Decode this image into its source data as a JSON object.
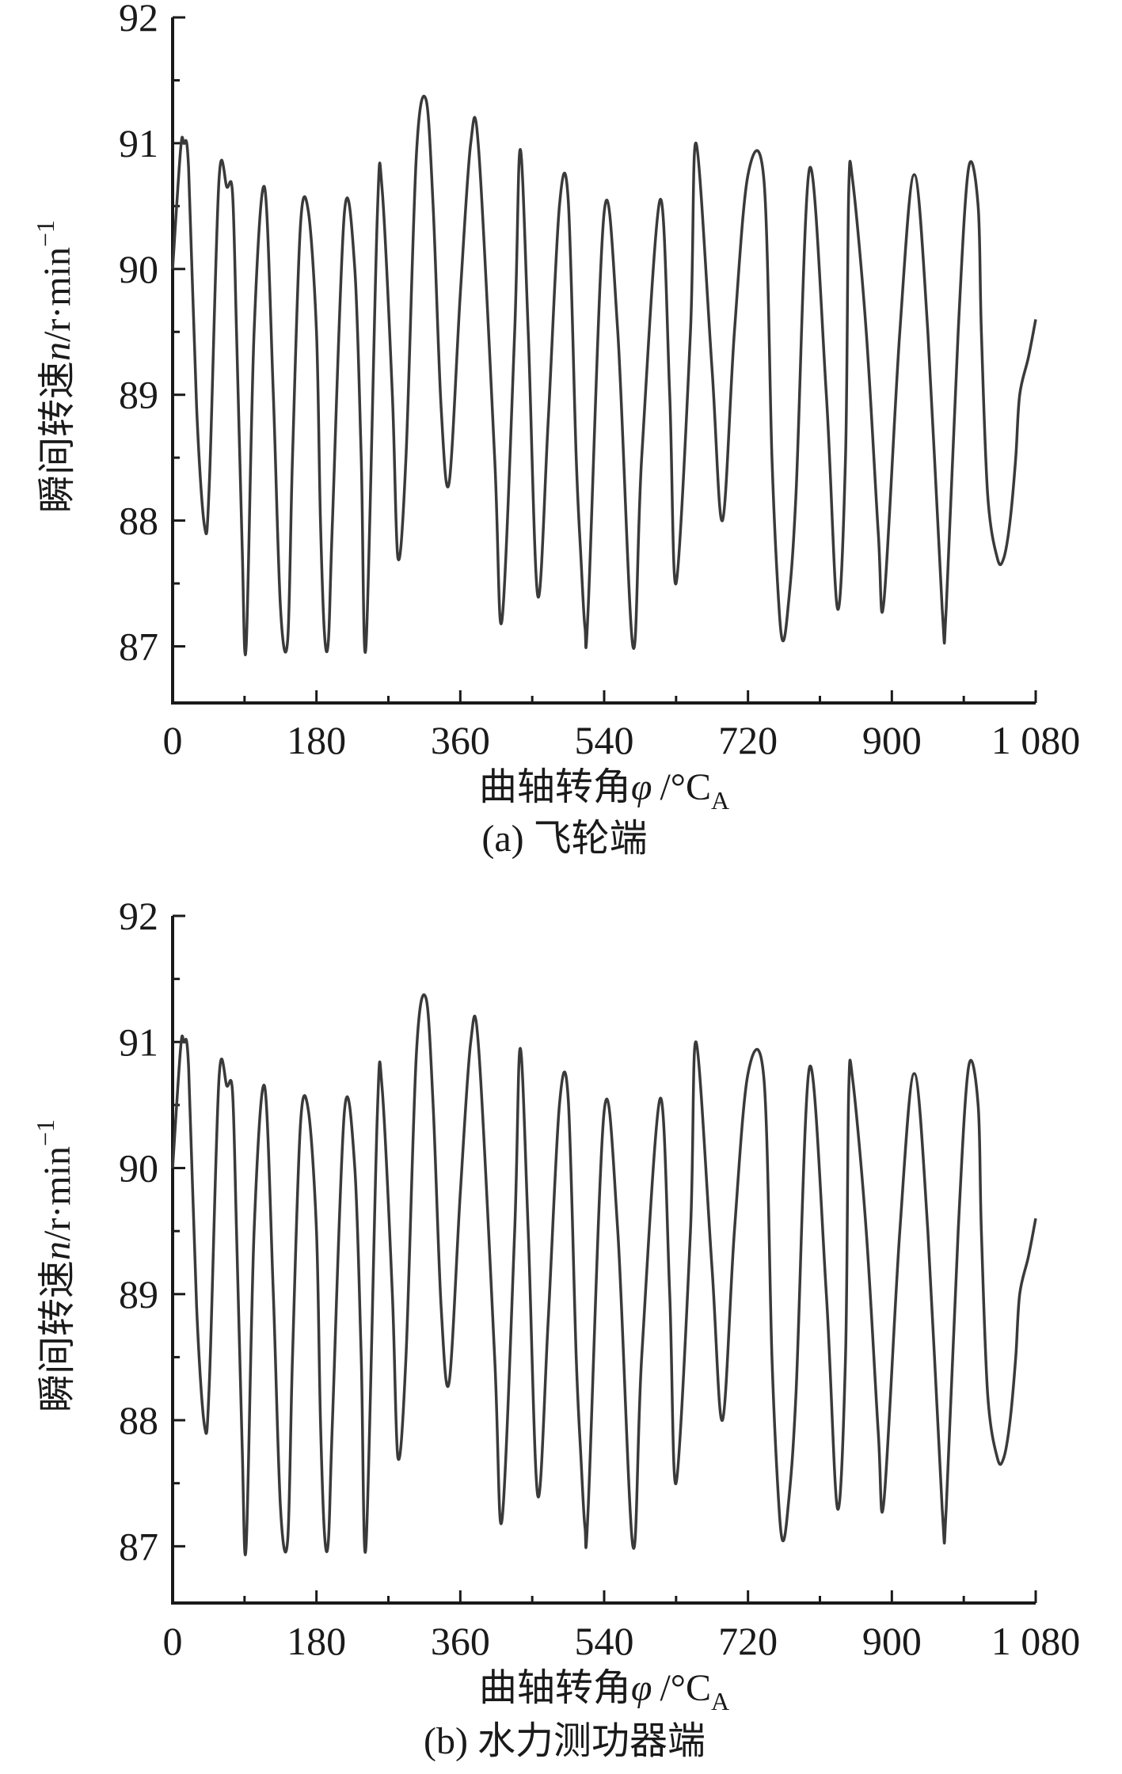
{
  "chart_data": [
    {
      "type": "line",
      "caption": "(a) 飞轮端",
      "xlabel": {
        "main": "曲轴转角",
        "symbol": "φ",
        "unit": "/°C",
        "sub": "A"
      },
      "ylabel": {
        "main": "瞬间转速",
        "symbol": "n",
        "unit": "/r·min",
        "sup": "−1"
      },
      "xlim": [
        0,
        1080
      ],
      "ylim": [
        86.55,
        92
      ],
      "xticks": [
        0,
        180,
        360,
        540,
        720,
        900,
        1080
      ],
      "xtick_labels": [
        "0",
        "180",
        "360",
        "540",
        "720",
        "900",
        "1 080"
      ],
      "yticks": [
        87,
        88,
        89,
        90,
        91,
        92
      ],
      "ytick_labels": [
        "87",
        "88",
        "89",
        "90",
        "91",
        "92"
      ],
      "grid": false,
      "series": [
        {
          "x": [
            0,
            10,
            14,
            20,
            30,
            40,
            46,
            58,
            68,
            75,
            80,
            87,
            92,
            102,
            115,
            126,
            135,
            144,
            150,
            160,
            170,
            180,
            185,
            190,
            195,
            200,
            215,
            228,
            236,
            242,
            256,
            262,
            275,
            282,
            292,
            305,
            317,
            326,
            336,
            346,
            360,
            373,
            383,
            403,
            412,
            428,
            435,
            445,
            457,
            470,
            484,
            495,
            505,
            511,
            516,
            520,
            540,
            557,
            576,
            587,
            610,
            622,
            630,
            648,
            655,
            675,
            688,
            703,
            720,
            740,
            750,
            757,
            763,
            770,
            780,
            797,
            818,
            832,
            842,
            846,
            851,
            868,
            883,
            890,
            910,
            928,
            945,
            963,
            968,
            983,
            996,
            1008,
            1012,
            1020,
            1032,
            1040,
            1048,
            1055,
            1060,
            1071,
            1080
          ],
          "y": [
            90.0,
            90.95,
            91.0,
            90.8,
            88.9,
            87.95,
            88.3,
            90.7,
            90.65,
            90.6,
            89.5,
            87.8,
            87.0,
            89.5,
            90.65,
            89.0,
            87.3,
            87.05,
            88.5,
            90.35,
            90.45,
            89.5,
            88.0,
            87.1,
            87.05,
            88.0,
            90.45,
            90.0,
            88.5,
            87.0,
            90.4,
            90.65,
            89.0,
            87.7,
            88.5,
            90.9,
            91.35,
            90.5,
            88.9,
            88.3,
            89.8,
            91.0,
            90.95,
            88.5,
            87.2,
            89.5,
            90.95,
            89.5,
            87.4,
            88.8,
            90.5,
            90.55,
            88.5,
            87.7,
            87.15,
            87.3,
            90.45,
            89.5,
            87.0,
            88.5,
            90.55,
            89.0,
            87.5,
            89.5,
            91.0,
            89.2,
            88.0,
            89.5,
            90.75,
            90.7,
            88.5,
            87.5,
            87.05,
            87.3,
            88.2,
            90.8,
            89.0,
            87.3,
            88.5,
            90.6,
            90.7,
            89.5,
            87.9,
            87.35,
            89.5,
            90.75,
            89.5,
            87.3,
            87.3,
            89.5,
            90.8,
            90.5,
            89.5,
            88.2,
            87.7,
            87.7,
            88.0,
            88.5,
            89.0,
            89.3,
            89.6
          ]
        }
      ]
    },
    {
      "type": "line",
      "caption": "(b) 水力测功器端",
      "xlabel": {
        "main": "曲轴转角",
        "symbol": "φ",
        "unit": "/°C",
        "sub": "A"
      },
      "ylabel": {
        "main": "瞬间转速",
        "symbol": "n",
        "unit": "/r·min",
        "sup": "−1"
      },
      "xlim": [
        0,
        1080
      ],
      "ylim": [
        86.55,
        92
      ],
      "xticks": [
        0,
        180,
        360,
        540,
        720,
        900,
        1080
      ],
      "xtick_labels": [
        "0",
        "180",
        "360",
        "540",
        "720",
        "900",
        "1 080"
      ],
      "yticks": [
        87,
        88,
        89,
        90,
        91,
        92
      ],
      "ytick_labels": [
        "87",
        "88",
        "89",
        "90",
        "91",
        "92"
      ],
      "grid": false,
      "series": [
        {
          "x": [
            0,
            10,
            14,
            20,
            30,
            40,
            46,
            58,
            68,
            75,
            80,
            87,
            92,
            102,
            115,
            126,
            135,
            144,
            150,
            160,
            170,
            180,
            185,
            190,
            195,
            200,
            215,
            228,
            236,
            242,
            256,
            262,
            275,
            282,
            292,
            305,
            317,
            326,
            336,
            346,
            360,
            373,
            383,
            403,
            412,
            428,
            435,
            445,
            457,
            470,
            484,
            495,
            505,
            511,
            516,
            520,
            540,
            557,
            576,
            587,
            610,
            622,
            630,
            648,
            655,
            675,
            688,
            703,
            720,
            740,
            750,
            757,
            763,
            770,
            780,
            797,
            818,
            832,
            842,
            846,
            851,
            868,
            883,
            890,
            910,
            928,
            945,
            963,
            968,
            983,
            996,
            1008,
            1012,
            1020,
            1032,
            1040,
            1048,
            1055,
            1060,
            1071,
            1080
          ],
          "y": [
            90.0,
            90.95,
            91.0,
            90.8,
            88.9,
            87.95,
            88.3,
            90.7,
            90.65,
            90.6,
            89.5,
            87.8,
            87.0,
            89.5,
            90.65,
            89.0,
            87.3,
            87.05,
            88.5,
            90.35,
            90.45,
            89.5,
            88.0,
            87.1,
            87.05,
            88.0,
            90.45,
            90.0,
            88.5,
            87.0,
            90.4,
            90.65,
            89.0,
            87.7,
            88.5,
            90.9,
            91.35,
            90.5,
            88.9,
            88.3,
            89.8,
            91.0,
            90.95,
            88.5,
            87.2,
            89.5,
            90.95,
            89.5,
            87.4,
            88.8,
            90.5,
            90.55,
            88.5,
            87.7,
            87.15,
            87.3,
            90.45,
            89.5,
            87.0,
            88.5,
            90.55,
            89.0,
            87.5,
            89.5,
            91.0,
            89.2,
            88.0,
            89.5,
            90.75,
            90.7,
            88.5,
            87.5,
            87.05,
            87.3,
            88.2,
            90.8,
            89.0,
            87.3,
            88.5,
            90.6,
            90.7,
            89.5,
            87.9,
            87.35,
            89.5,
            90.75,
            89.5,
            87.3,
            87.3,
            89.5,
            90.8,
            90.5,
            89.5,
            88.2,
            87.7,
            87.7,
            88.0,
            88.5,
            89.0,
            89.3,
            89.6
          ]
        }
      ]
    }
  ]
}
